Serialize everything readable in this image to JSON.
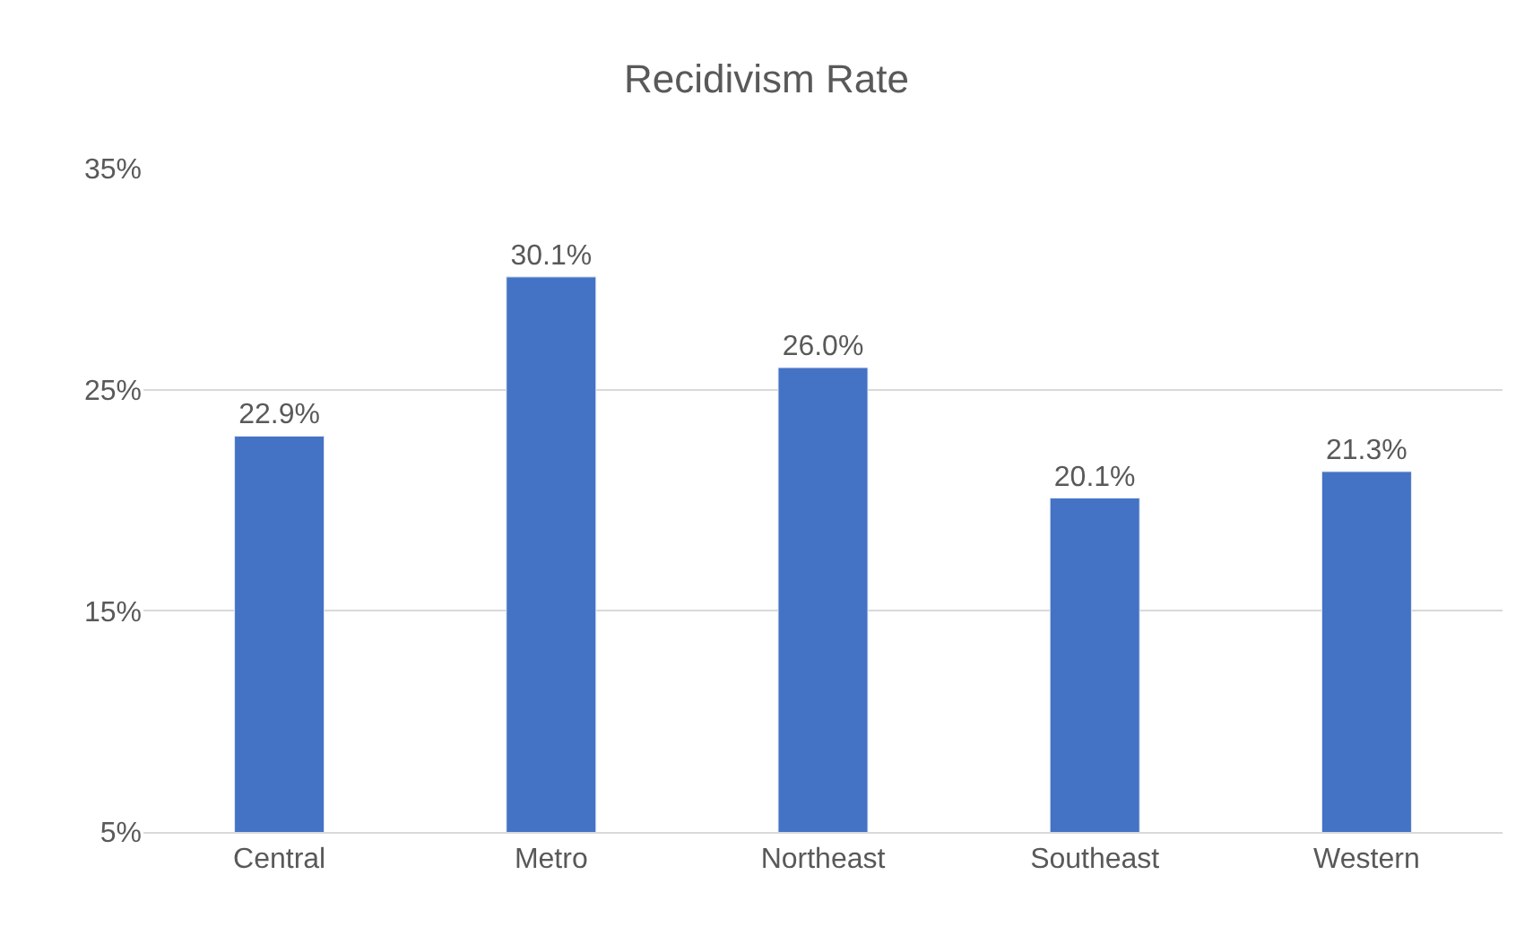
{
  "chart_data": {
    "type": "bar",
    "title": "Recidivism Rate",
    "categories": [
      "Central",
      "Metro",
      "Northeast",
      "Southeast",
      "Western"
    ],
    "values": [
      22.9,
      30.1,
      26.0,
      20.1,
      21.3
    ],
    "value_labels": [
      "22.9%",
      "30.1%",
      "26.0%",
      "20.1%",
      "21.3%"
    ],
    "color": "#4472c4",
    "ylim": [
      5,
      35
    ],
    "yticks": [
      {
        "value": 5,
        "label": "5%"
      },
      {
        "value": 15,
        "label": "15%"
      },
      {
        "value": 25,
        "label": "25%"
      },
      {
        "value": 35,
        "label": "35%"
      }
    ],
    "grid": "y",
    "legend": false
  }
}
